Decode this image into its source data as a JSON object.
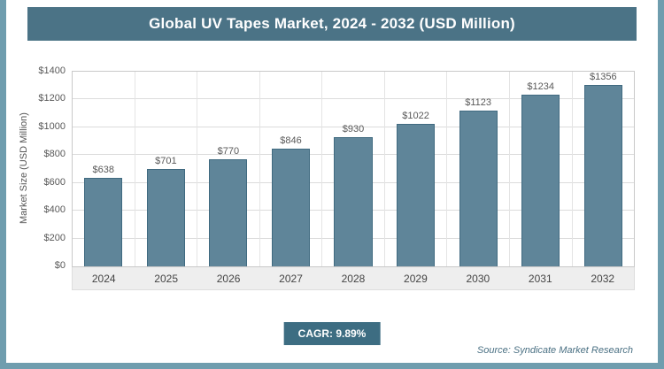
{
  "header": {
    "title": "Global UV Tapes Market, 2024 - 2032 (USD Million)"
  },
  "colors": {
    "header_bg": "#4b7386",
    "frame": "#6f9dae",
    "bar_fill": "#5f8599",
    "bar_border": "#406a80",
    "grid": "#dcdcdc",
    "cagr_bg": "#3d6d82"
  },
  "chart_data": {
    "type": "bar",
    "title": "Global UV Tapes Market, 2024 - 2032 (USD Million)",
    "categories": [
      "2024",
      "2025",
      "2026",
      "2027",
      "2028",
      "2029",
      "2030",
      "2031",
      "2032"
    ],
    "values": [
      638,
      701,
      770,
      846,
      930,
      1022,
      1123,
      1234,
      1356
    ],
    "value_labels": [
      "$638",
      "$701",
      "$770",
      "$846",
      "$930",
      "$1022",
      "$1123",
      "$1234",
      "$1356"
    ],
    "xlabel": "",
    "ylabel": "Market Size (USD Million)",
    "ylim": [
      0,
      1400
    ],
    "ytick_step": 200,
    "ytick_labels": [
      "$0",
      "$200",
      "$400",
      "$600",
      "$800",
      "$1000",
      "$1200",
      "$1400"
    ],
    "grid": true,
    "legend_position": "none"
  },
  "footer": {
    "cagr_label": "CAGR: 9.89%",
    "source": "Source: Syndicate Market Research"
  }
}
